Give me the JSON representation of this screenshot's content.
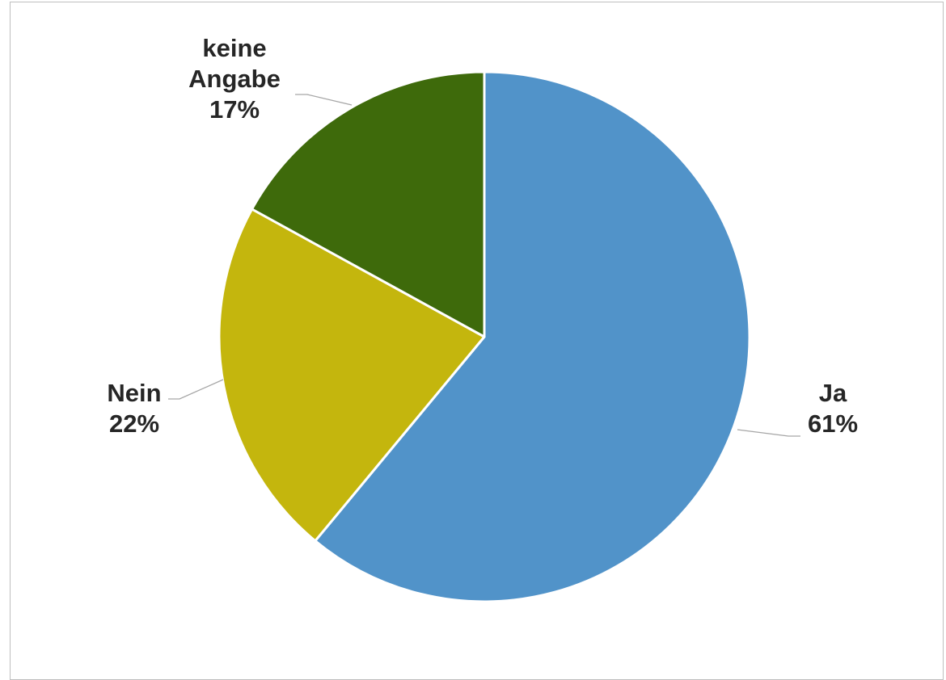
{
  "chart_data": {
    "type": "pie",
    "title": "",
    "start_angle_deg": 0,
    "direction": "clockwise",
    "slices": [
      {
        "label": "Ja",
        "value": 61,
        "value_label": "61%",
        "color": "#5193c9"
      },
      {
        "label": "Nein",
        "value": 22,
        "value_label": "22%",
        "color": "#c4b60d"
      },
      {
        "label": "keine Angabe",
        "value": 17,
        "value_label": "17%",
        "color": "#3e6a0b"
      }
    ],
    "legend": "none",
    "data_labels": "outside with leader lines"
  }
}
